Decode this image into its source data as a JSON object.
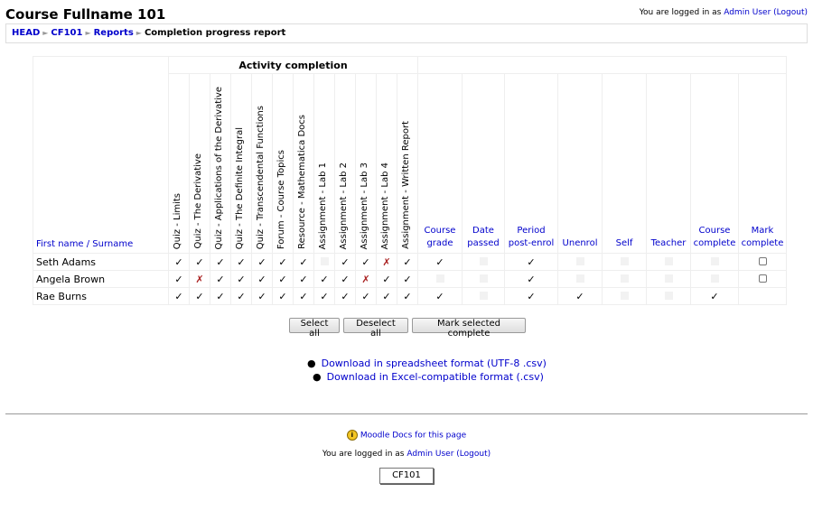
{
  "header": {
    "course_title": "Course Fullname 101",
    "logged_in_prefix": "You are logged in as ",
    "user": "Admin User",
    "logout": "(Logout)"
  },
  "breadcrumb": {
    "items": [
      "HEAD",
      "CF101",
      "Reports"
    ],
    "current": "Completion progress report"
  },
  "table": {
    "name_header": "First name / Surname",
    "activity_group": "Activity completion",
    "activities": [
      "Quiz - Limits",
      "Quiz - The Derivative",
      "Quiz - Applications of the Derivative",
      "Quiz - The Definite Integral",
      "Quiz - Transcendental Functions",
      "Forum - Course Topics",
      "Resource - Mathematica Docs",
      "Assignment - Lab 1",
      "Assignment - Lab 2",
      "Assignment - Lab 3",
      "Assignment - Lab 4",
      "Assignment - Written Report"
    ],
    "criteria": [
      {
        "line1": "Course",
        "line2": "grade",
        "link": true
      },
      {
        "line1": "Date",
        "line2": "passed",
        "link": true
      },
      {
        "line1": "Period",
        "line2": "post-enrol",
        "link": true
      },
      {
        "line1": "",
        "line2": "Unenrol",
        "link": true
      },
      {
        "line1": "",
        "line2": "Self",
        "link": true
      },
      {
        "line1": "",
        "line2": "Teacher",
        "link": true
      },
      {
        "line1": "Course",
        "line2": "complete",
        "link": true
      },
      {
        "line1": "Mark",
        "line2": "complete",
        "link": true
      }
    ],
    "rows": [
      {
        "name": "Seth Adams",
        "activities": [
          "check",
          "check",
          "check",
          "check",
          "check",
          "check",
          "check",
          "blank",
          "check",
          "check",
          "cross",
          "check"
        ],
        "criteria": [
          "check",
          "blank",
          "check",
          "blank",
          "blank",
          "blank",
          "blank",
          "box"
        ]
      },
      {
        "name": "Angela Brown",
        "activities": [
          "check",
          "cross",
          "check",
          "check",
          "check",
          "check",
          "check",
          "check",
          "check",
          "cross",
          "check",
          "check"
        ],
        "criteria": [
          "blank",
          "blank",
          "check",
          "blank",
          "blank",
          "blank",
          "blank",
          "box"
        ]
      },
      {
        "name": "Rae Burns",
        "activities": [
          "check",
          "check",
          "check",
          "check",
          "check",
          "check",
          "check",
          "check",
          "check",
          "check",
          "check",
          "check"
        ],
        "criteria": [
          "check",
          "blank",
          "check",
          "check",
          "blank",
          "blank",
          "check",
          "none"
        ]
      }
    ]
  },
  "buttons": {
    "select_all": "Select all",
    "deselect_all": "Deselect all",
    "mark_selected": "Mark selected complete"
  },
  "downloads": {
    "csv_utf8": "Download in spreadsheet format (UTF-8 .csv)",
    "csv_excel": "Download in Excel-compatible format (.csv)"
  },
  "footer": {
    "docs_link": "Moodle Docs for this page",
    "logged_in_prefix": "You are logged in as ",
    "user": "Admin User",
    "logout": "(Logout)",
    "home_button": "CF101"
  },
  "symbols": {
    "check": "✓",
    "cross": "✗",
    "help_icon": "i"
  },
  "colors": {
    "link": "#0000cc",
    "cross": "#aa2222"
  }
}
